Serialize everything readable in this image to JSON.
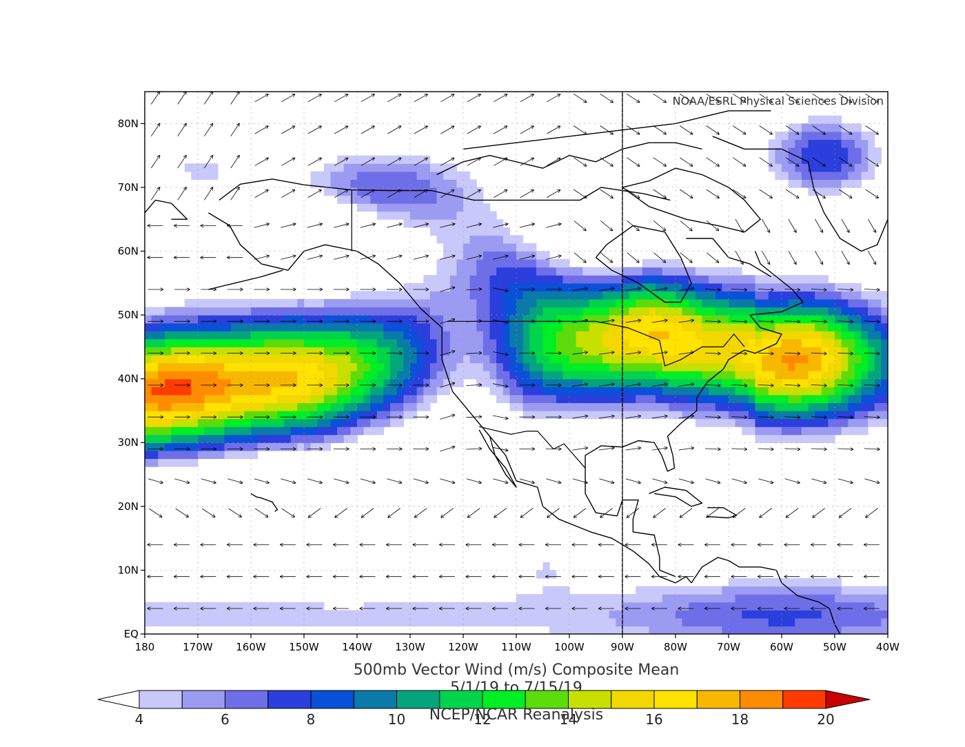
{
  "credit": "NOAA/ESRL Physical Sciences Division",
  "title": "500mb Vector Wind (m/s) Composite Mean",
  "date_range": "5/1/19  to 7/15/19",
  "source": "NCEP/NCAR Reanalysis",
  "map": {
    "lon_range": [
      -180,
      -40
    ],
    "lat_range": [
      0,
      85
    ],
    "x_ticks": [
      {
        "lon": -180,
        "label": "180"
      },
      {
        "lon": -170,
        "label": "170W"
      },
      {
        "lon": -160,
        "label": "160W"
      },
      {
        "lon": -150,
        "label": "150W"
      },
      {
        "lon": -140,
        "label": "140W"
      },
      {
        "lon": -130,
        "label": "130W"
      },
      {
        "lon": -120,
        "label": "120W"
      },
      {
        "lon": -110,
        "label": "110W"
      },
      {
        "lon": -100,
        "label": "100W"
      },
      {
        "lon": -90,
        "label": "90W"
      },
      {
        "lon": -80,
        "label": "80W"
      },
      {
        "lon": -70,
        "label": "70W"
      },
      {
        "lon": -60,
        "label": "60W"
      },
      {
        "lon": -50,
        "label": "50W"
      },
      {
        "lon": -40,
        "label": "40W"
      }
    ],
    "y_ticks": [
      {
        "lat": 0,
        "label": "EQ"
      },
      {
        "lat": 10,
        "label": "10N"
      },
      {
        "lat": 20,
        "label": "20N"
      },
      {
        "lat": 30,
        "label": "30N"
      },
      {
        "lat": 40,
        "label": "40N"
      },
      {
        "lat": 50,
        "label": "50N"
      },
      {
        "lat": 60,
        "label": "60N"
      },
      {
        "lat": 70,
        "label": "70N"
      },
      {
        "lat": 80,
        "label": "80N"
      }
    ]
  },
  "colorbar": {
    "bins": [
      {
        "color": "#ffffff"
      },
      {
        "color": "#c8c8fa"
      },
      {
        "color": "#9b9bf2"
      },
      {
        "color": "#6e6ee8"
      },
      {
        "color": "#2a3fdc"
      },
      {
        "color": "#0a50d8"
      },
      {
        "color": "#0a7aa8"
      },
      {
        "color": "#04a47c"
      },
      {
        "color": "#00d44c"
      },
      {
        "color": "#00ee24"
      },
      {
        "color": "#5cdc0a"
      },
      {
        "color": "#c8e000"
      },
      {
        "color": "#f2d800"
      },
      {
        "color": "#ffe200"
      },
      {
        "color": "#f8b800"
      },
      {
        "color": "#ff8c00"
      },
      {
        "color": "#ff3c00"
      },
      {
        "color": "#c80000"
      }
    ],
    "labels": [
      {
        "value": 4,
        "label": "4"
      },
      {
        "value": 6,
        "label": "6"
      },
      {
        "value": 8,
        "label": "8"
      },
      {
        "value": 10,
        "label": "10"
      },
      {
        "value": 12,
        "label": "12"
      },
      {
        "value": 14,
        "label": "14"
      },
      {
        "value": 16,
        "label": "16"
      },
      {
        "value": 18,
        "label": "18"
      },
      {
        "value": 20,
        "label": "20"
      }
    ]
  }
}
